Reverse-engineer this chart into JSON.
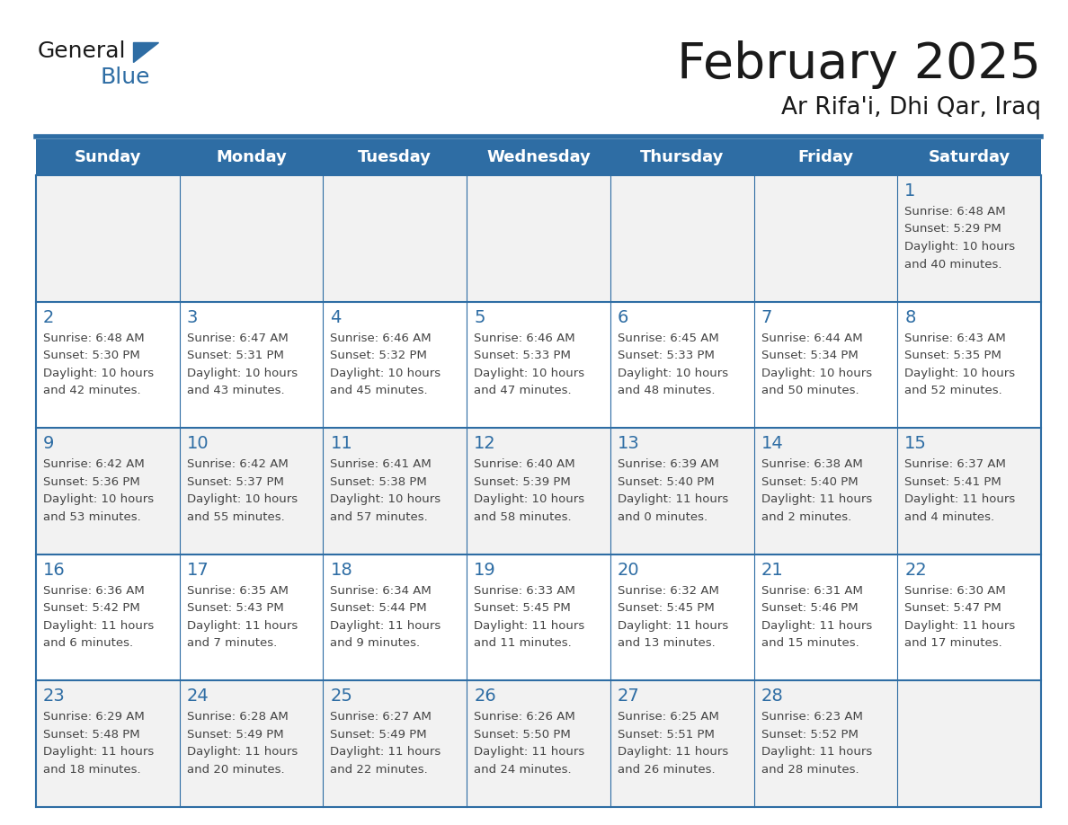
{
  "title": "February 2025",
  "subtitle": "Ar Rifa'i, Dhi Qar, Iraq",
  "days_of_week": [
    "Sunday",
    "Monday",
    "Tuesday",
    "Wednesday",
    "Thursday",
    "Friday",
    "Saturday"
  ],
  "header_bg": "#2e6da4",
  "header_fg": "#ffffff",
  "cell_bg_white": "#ffffff",
  "cell_bg_gray": "#f2f2f2",
  "line_color": "#2e6da4",
  "day_number_color": "#2e6da4",
  "text_color": "#444444",
  "title_color": "#1a1a1a",
  "logo_text_color": "#1a1a1a",
  "logo_blue_color": "#2e6da4",
  "calendar": [
    [
      null,
      null,
      null,
      null,
      null,
      null,
      {
        "day": 1,
        "sunrise": "6:48 AM",
        "sunset": "5:29 PM",
        "daylight_hours": 10,
        "daylight_minutes": 40
      }
    ],
    [
      {
        "day": 2,
        "sunrise": "6:48 AM",
        "sunset": "5:30 PM",
        "daylight_hours": 10,
        "daylight_minutes": 42
      },
      {
        "day": 3,
        "sunrise": "6:47 AM",
        "sunset": "5:31 PM",
        "daylight_hours": 10,
        "daylight_minutes": 43
      },
      {
        "day": 4,
        "sunrise": "6:46 AM",
        "sunset": "5:32 PM",
        "daylight_hours": 10,
        "daylight_minutes": 45
      },
      {
        "day": 5,
        "sunrise": "6:46 AM",
        "sunset": "5:33 PM",
        "daylight_hours": 10,
        "daylight_minutes": 47
      },
      {
        "day": 6,
        "sunrise": "6:45 AM",
        "sunset": "5:33 PM",
        "daylight_hours": 10,
        "daylight_minutes": 48
      },
      {
        "day": 7,
        "sunrise": "6:44 AM",
        "sunset": "5:34 PM",
        "daylight_hours": 10,
        "daylight_minutes": 50
      },
      {
        "day": 8,
        "sunrise": "6:43 AM",
        "sunset": "5:35 PM",
        "daylight_hours": 10,
        "daylight_minutes": 52
      }
    ],
    [
      {
        "day": 9,
        "sunrise": "6:42 AM",
        "sunset": "5:36 PM",
        "daylight_hours": 10,
        "daylight_minutes": 53
      },
      {
        "day": 10,
        "sunrise": "6:42 AM",
        "sunset": "5:37 PM",
        "daylight_hours": 10,
        "daylight_minutes": 55
      },
      {
        "day": 11,
        "sunrise": "6:41 AM",
        "sunset": "5:38 PM",
        "daylight_hours": 10,
        "daylight_minutes": 57
      },
      {
        "day": 12,
        "sunrise": "6:40 AM",
        "sunset": "5:39 PM",
        "daylight_hours": 10,
        "daylight_minutes": 58
      },
      {
        "day": 13,
        "sunrise": "6:39 AM",
        "sunset": "5:40 PM",
        "daylight_hours": 11,
        "daylight_minutes": 0
      },
      {
        "day": 14,
        "sunrise": "6:38 AM",
        "sunset": "5:40 PM",
        "daylight_hours": 11,
        "daylight_minutes": 2
      },
      {
        "day": 15,
        "sunrise": "6:37 AM",
        "sunset": "5:41 PM",
        "daylight_hours": 11,
        "daylight_minutes": 4
      }
    ],
    [
      {
        "day": 16,
        "sunrise": "6:36 AM",
        "sunset": "5:42 PM",
        "daylight_hours": 11,
        "daylight_minutes": 6
      },
      {
        "day": 17,
        "sunrise": "6:35 AM",
        "sunset": "5:43 PM",
        "daylight_hours": 11,
        "daylight_minutes": 7
      },
      {
        "day": 18,
        "sunrise": "6:34 AM",
        "sunset": "5:44 PM",
        "daylight_hours": 11,
        "daylight_minutes": 9
      },
      {
        "day": 19,
        "sunrise": "6:33 AM",
        "sunset": "5:45 PM",
        "daylight_hours": 11,
        "daylight_minutes": 11
      },
      {
        "day": 20,
        "sunrise": "6:32 AM",
        "sunset": "5:45 PM",
        "daylight_hours": 11,
        "daylight_minutes": 13
      },
      {
        "day": 21,
        "sunrise": "6:31 AM",
        "sunset": "5:46 PM",
        "daylight_hours": 11,
        "daylight_minutes": 15
      },
      {
        "day": 22,
        "sunrise": "6:30 AM",
        "sunset": "5:47 PM",
        "daylight_hours": 11,
        "daylight_minutes": 17
      }
    ],
    [
      {
        "day": 23,
        "sunrise": "6:29 AM",
        "sunset": "5:48 PM",
        "daylight_hours": 11,
        "daylight_minutes": 18
      },
      {
        "day": 24,
        "sunrise": "6:28 AM",
        "sunset": "5:49 PM",
        "daylight_hours": 11,
        "daylight_minutes": 20
      },
      {
        "day": 25,
        "sunrise": "6:27 AM",
        "sunset": "5:49 PM",
        "daylight_hours": 11,
        "daylight_minutes": 22
      },
      {
        "day": 26,
        "sunrise": "6:26 AM",
        "sunset": "5:50 PM",
        "daylight_hours": 11,
        "daylight_minutes": 24
      },
      {
        "day": 27,
        "sunrise": "6:25 AM",
        "sunset": "5:51 PM",
        "daylight_hours": 11,
        "daylight_minutes": 26
      },
      {
        "day": 28,
        "sunrise": "6:23 AM",
        "sunset": "5:52 PM",
        "daylight_hours": 11,
        "daylight_minutes": 28
      },
      null
    ]
  ]
}
